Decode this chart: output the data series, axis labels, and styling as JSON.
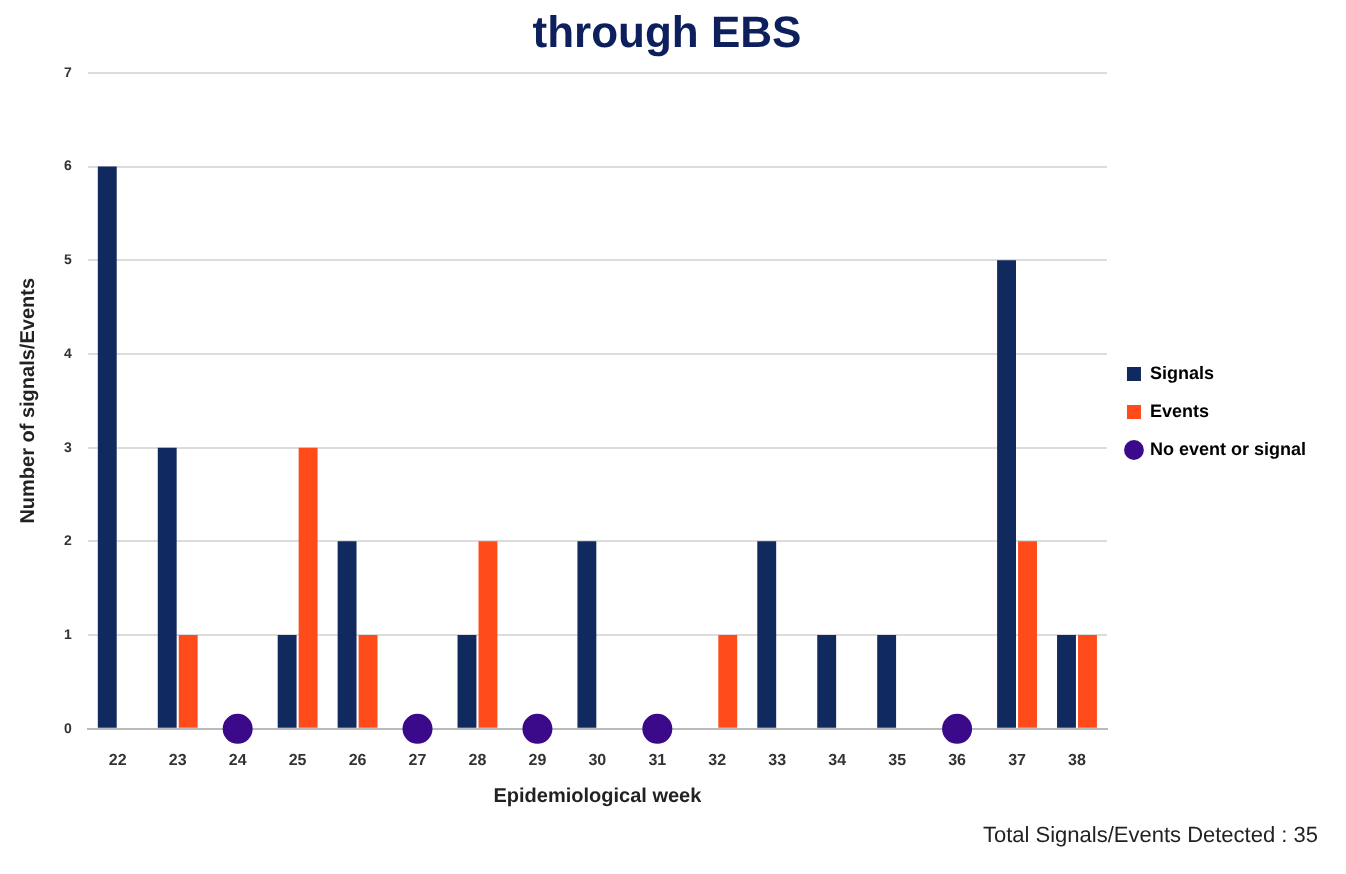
{
  "chart_data": {
    "type": "bar",
    "title": "through EBS",
    "categories": [
      "22",
      "23",
      "24",
      "25",
      "26",
      "27",
      "28",
      "29",
      "30",
      "31",
      "32",
      "33",
      "34",
      "35",
      "36",
      "37",
      "38"
    ],
    "series": [
      {
        "name": "Signals",
        "color": "#10295e",
        "values": [
          6,
          3,
          null,
          1,
          2,
          null,
          1,
          null,
          2,
          null,
          null,
          2,
          1,
          1,
          null,
          5,
          1
        ]
      },
      {
        "name": "Events",
        "color": "#ff4a1a",
        "values": [
          null,
          1,
          null,
          3,
          1,
          null,
          2,
          null,
          null,
          null,
          1,
          null,
          null,
          null,
          null,
          2,
          1
        ]
      },
      {
        "name": "No event or signal",
        "type": "scatter",
        "color": "#3a0a8a",
        "x": [
          "24",
          "27",
          "29",
          "31",
          "36"
        ],
        "values": [
          0,
          0,
          0,
          0,
          0
        ]
      }
    ],
    "xlabel": "Epidemiological week",
    "ylabel": "Number of signals/Events",
    "ylim": [
      0,
      7
    ],
    "yticks": [
      0,
      1,
      2,
      3,
      4,
      5,
      6,
      7
    ],
    "grid": "y",
    "legend": "right",
    "marker": "circle",
    "annotations": [
      "Total Signals/Events Detected : 35"
    ]
  }
}
